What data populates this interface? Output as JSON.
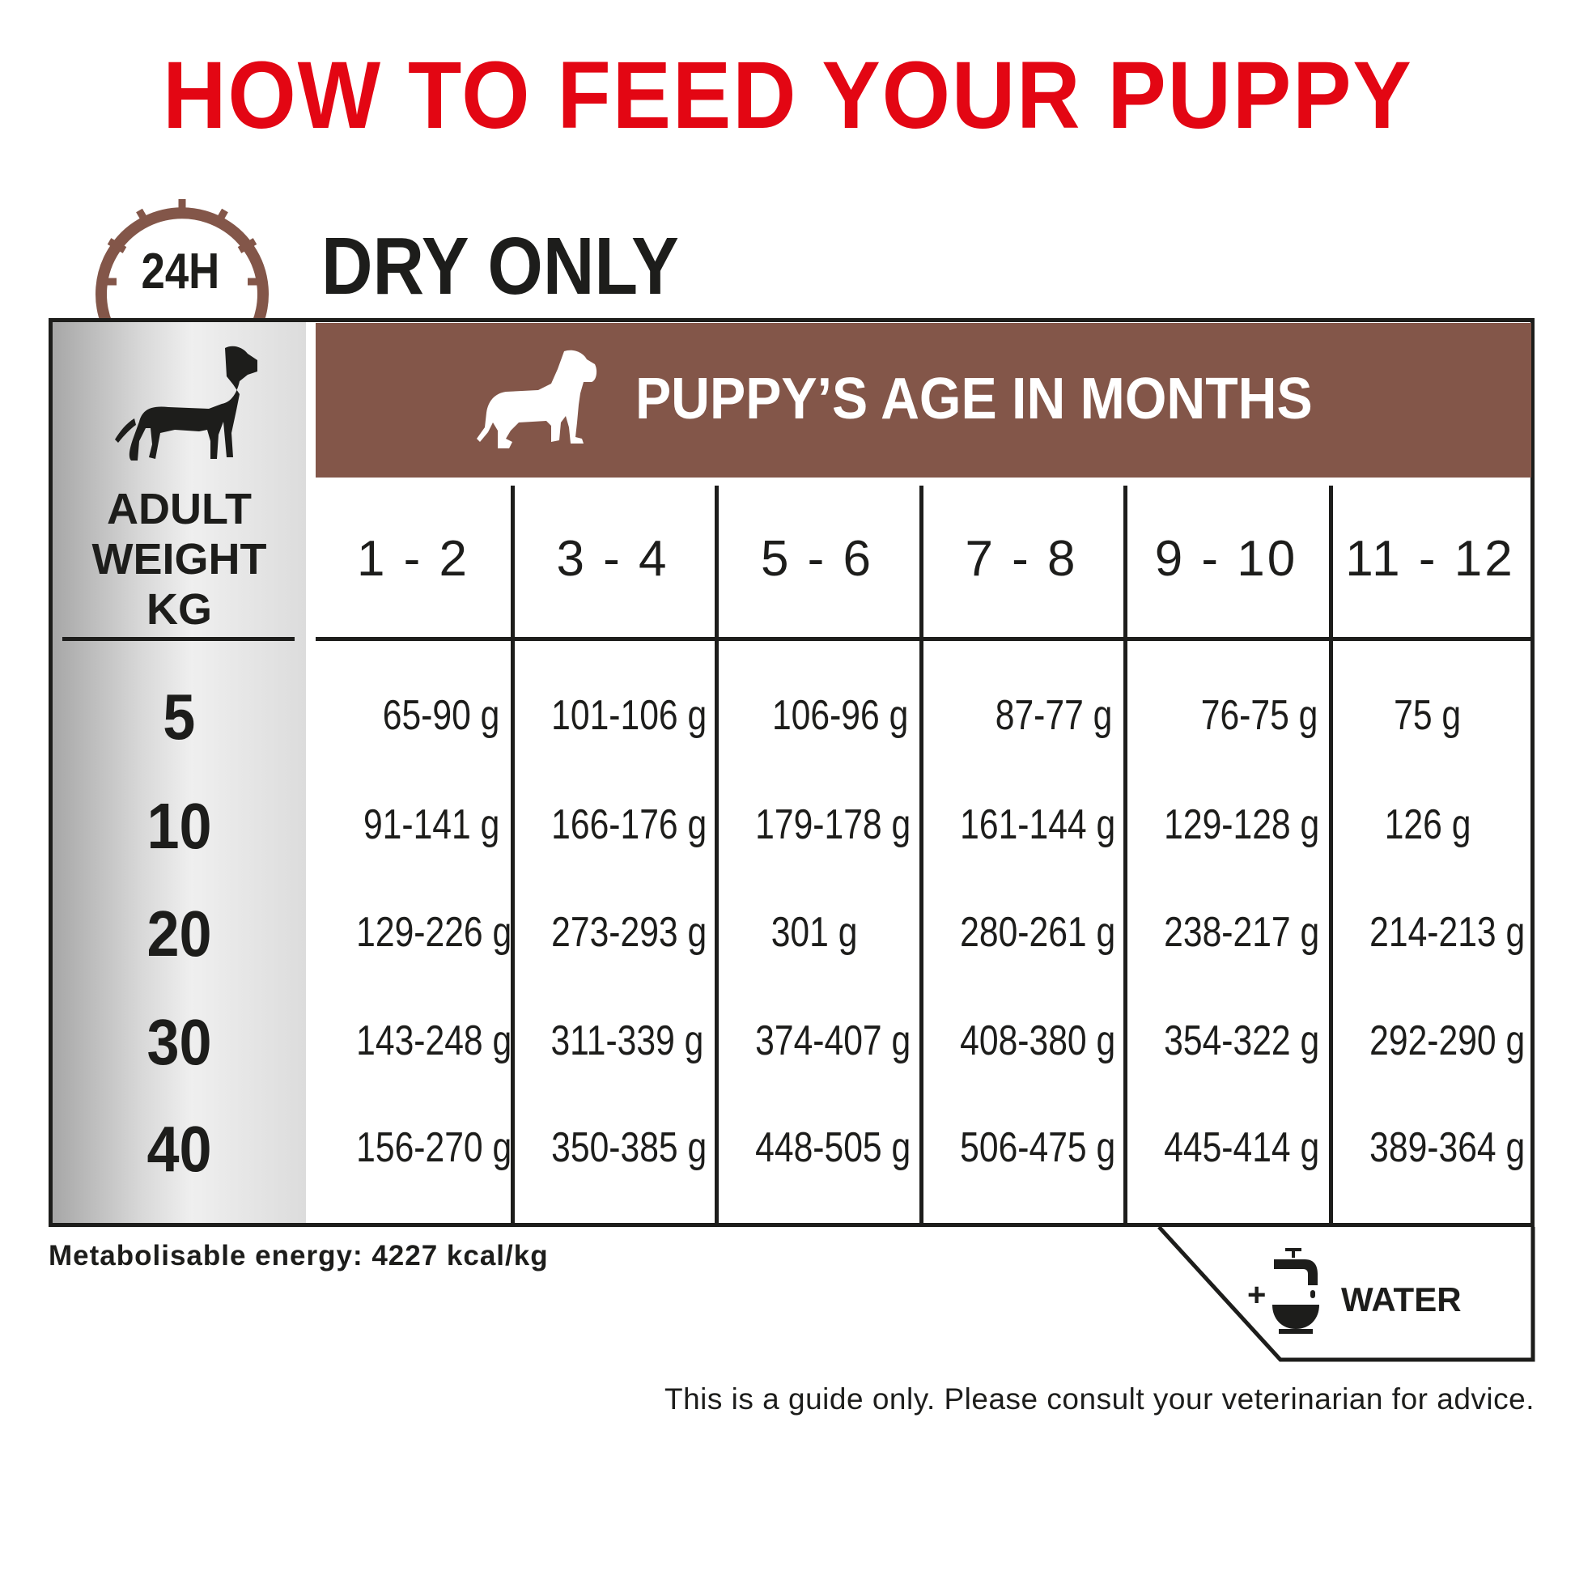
{
  "title": "HOW TO FEED YOUR PUPPY",
  "clock_badge": "24H",
  "feeding_mode": "DRY ONLY",
  "header": "PUPPY’S AGE IN MONTHS",
  "weight_label": [
    "ADULT",
    "WEIGHT",
    "KG"
  ],
  "age_columns": [
    "1 - 2",
    "3 - 4",
    "5 - 6",
    "7 - 8",
    "9 - 10",
    "11 - 12"
  ],
  "rows": [
    {
      "weight": "5",
      "values": [
        "65-90 g",
        "101-106 g",
        "106-96 g",
        "87-77 g",
        "76-75 g",
        "75 g"
      ]
    },
    {
      "weight": "10",
      "values": [
        "91-141 g",
        "166-176 g",
        "179-178 g",
        "161-144 g",
        "129-128 g",
        "126 g"
      ]
    },
    {
      "weight": "20",
      "values": [
        "129-226 g",
        "273-293 g",
        "301 g",
        "280-261 g",
        "238-217 g",
        "214-213 g"
      ]
    },
    {
      "weight": "30",
      "values": [
        "143-248 g",
        "311-339 g",
        "374-407 g",
        "408-380 g",
        "354-322 g",
        "292-290 g"
      ]
    },
    {
      "weight": "40",
      "values": [
        "156-270 g",
        "350-385 g",
        "448-505 g",
        "506-475 g",
        "445-414 g",
        "389-364 g"
      ]
    }
  ],
  "energy": "Metabolisable energy: 4227 kcal/kg",
  "water": {
    "plus": "+",
    "label": "WATER"
  },
  "disclaimer": "This is a guide only. Please consult your veterinarian for advice.",
  "colors": {
    "title": "#e30613",
    "header": "#835649",
    "clock": "#835649",
    "text": "#1d1d1b"
  },
  "icons": [
    "clock-24h-icon",
    "adult-dog-icon",
    "puppy-icon",
    "water-tap-bowl-icon"
  ]
}
